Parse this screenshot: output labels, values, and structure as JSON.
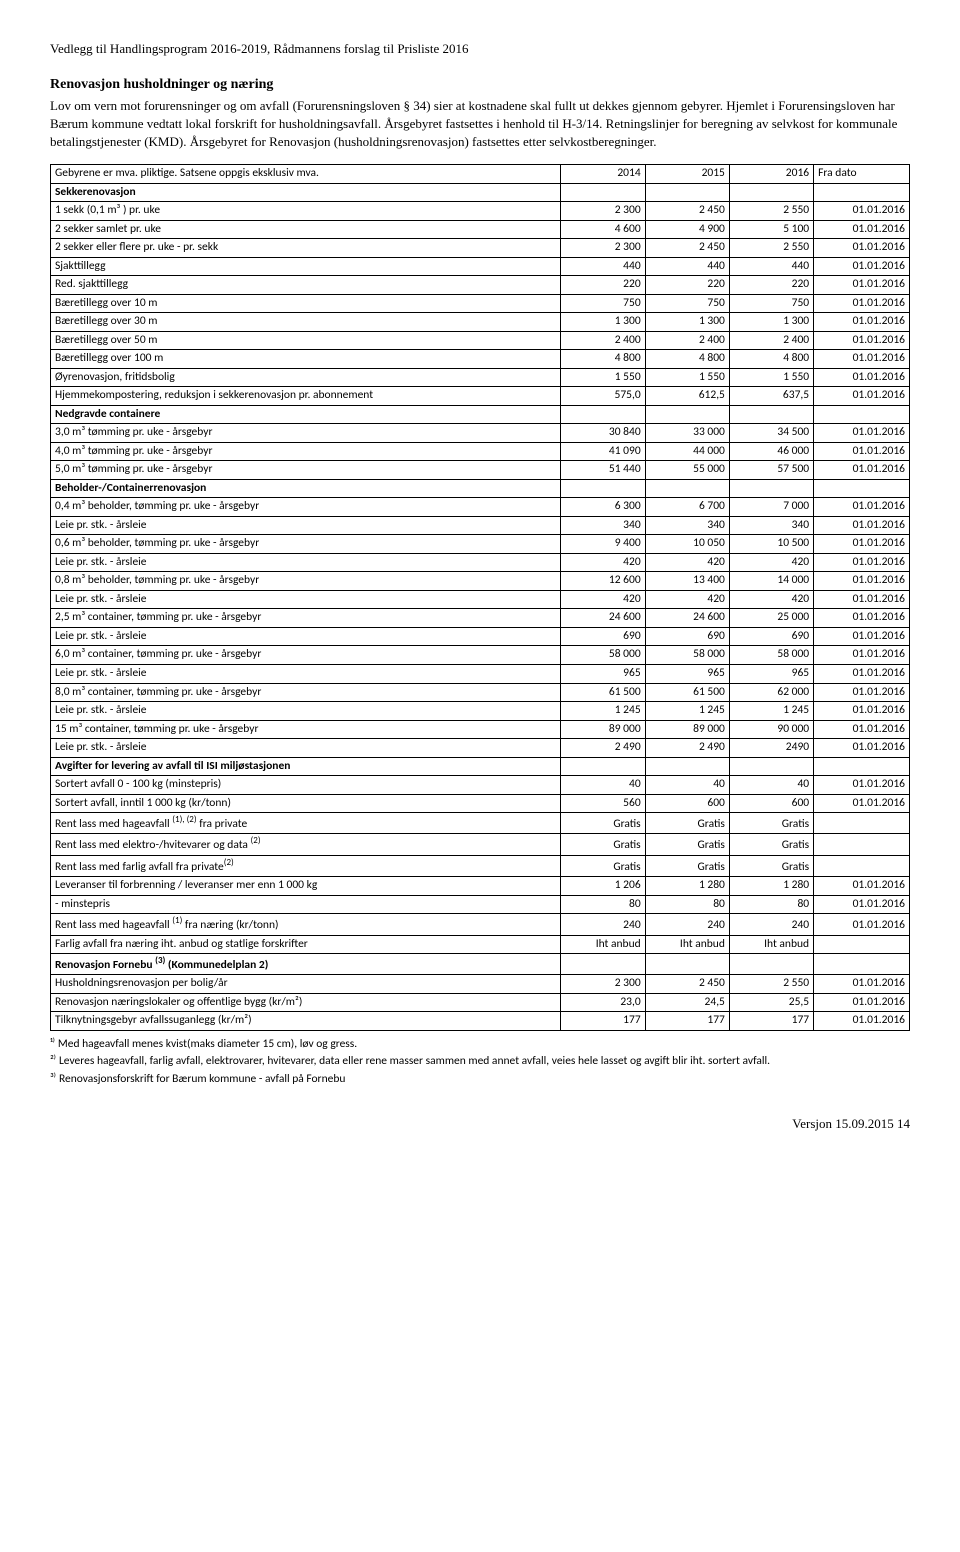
{
  "header_line": "Vedlegg til Handlingsprogram 2016-2019, Rådmannens forslag til Prisliste 2016",
  "section_title": "Renovasjon husholdninger og næring",
  "intro_para": "Lov om vern mot forurensninger og om avfall (Forurensningsloven § 34) sier at kostnadene skal fullt ut dekkes gjennom gebyrer. Hjemlet i Forurensingsloven har Bærum kommune vedtatt lokal forskrift for husholdningsavfall. Årsgebyret fastsettes i henhold til H-3/14. Retningslinjer for beregning av selvkost for kommunale betalingstjenester (KMD). Årsgebyret for Renovasjon (husholdningsrenovasjon) fastsettes etter selvkostberegninger.",
  "table_header": {
    "col0": "Gebyrene er mva. pliktige. Satsene oppgis eksklusiv mva.",
    "col1": "2014",
    "col2": "2015",
    "col3": "2016",
    "col4": "Fra  dato"
  },
  "rows": [
    {
      "label": "Sekkerenovasjon",
      "bold": true
    },
    {
      "label": "1 sekk (0,1 m³ ) pr. uke",
      "v": [
        "2 300",
        "2 450",
        "2 550",
        "01.01.2016"
      ]
    },
    {
      "label": "2 sekker samlet pr. uke",
      "v": [
        "4 600",
        "4 900",
        "5 100",
        "01.01.2016"
      ]
    },
    {
      "label": "2 sekker eller flere pr. uke - pr. sekk",
      "v": [
        "2 300",
        "2 450",
        "2 550",
        "01.01.2016"
      ]
    },
    {
      "label": "Sjakttillegg",
      "v": [
        "440",
        "440",
        "440",
        "01.01.2016"
      ]
    },
    {
      "label": "Red. sjakttillegg",
      "v": [
        "220",
        "220",
        "220",
        "01.01.2016"
      ]
    },
    {
      "label": "Bæretillegg over 10 m",
      "v": [
        "750",
        "750",
        "750",
        "01.01.2016"
      ]
    },
    {
      "label": "Bæretillegg over 30 m",
      "v": [
        "1 300",
        "1 300",
        "1 300",
        "01.01.2016"
      ]
    },
    {
      "label": "Bæretillegg over 50 m",
      "v": [
        "2 400",
        "2 400",
        "2 400",
        "01.01.2016"
      ]
    },
    {
      "label": "Bæretillegg over 100 m",
      "v": [
        "4 800",
        "4 800",
        "4 800",
        "01.01.2016"
      ]
    },
    {
      "label": "Øyrenovasjon, fritidsbolig",
      "v": [
        "1 550",
        "1 550",
        "1 550",
        "01.01.2016"
      ]
    },
    {
      "label": "Hjemmekompostering, reduksjon i sekkerenovasjon pr. abonnement",
      "v": [
        "575,0",
        "612,5",
        "637,5",
        "01.01.2016"
      ]
    },
    {
      "label": "Nedgravde containere",
      "bold": true
    },
    {
      "label": "3,0 m³ tømming pr. uke - årsgebyr",
      "v": [
        "30 840",
        "33 000",
        "34 500",
        "01.01.2016"
      ]
    },
    {
      "label": "4,0 m³ tømming pr. uke - årsgebyr",
      "v": [
        "41 090",
        "44 000",
        "46 000",
        "01.01.2016"
      ]
    },
    {
      "label": "5,0 m³ tømming pr. uke - årsgebyr",
      "v": [
        "51 440",
        "55 000",
        "57 500",
        "01.01.2016"
      ]
    },
    {
      "label": "Beholder-/Containerrenovasjon",
      "bold": true
    },
    {
      "label": "0,4 m³ beholder, tømming pr. uke - årsgebyr",
      "v": [
        "6 300",
        "6 700",
        "7 000",
        "01.01.2016"
      ]
    },
    {
      "label": "Leie pr. stk. - årsleie",
      "v": [
        "340",
        "340",
        "340",
        "01.01.2016"
      ]
    },
    {
      "label": "0,6 m³ beholder, tømming pr. uke - årsgebyr",
      "v": [
        "9 400",
        "10 050",
        "10 500",
        "01.01.2016"
      ]
    },
    {
      "label": "Leie pr. stk. - årsleie",
      "v": [
        "420",
        "420",
        "420",
        "01.01.2016"
      ]
    },
    {
      "label": "0,8 m³ beholder, tømming pr. uke - årsgebyr",
      "v": [
        "12 600",
        "13 400",
        "14 000",
        "01.01.2016"
      ]
    },
    {
      "label": "Leie pr. stk. - årsleie",
      "v": [
        "420",
        "420",
        "420",
        "01.01.2016"
      ]
    },
    {
      "label": "2,5 m³ container, tømming pr. uke - årsgebyr",
      "v": [
        "24 600",
        "24 600",
        "25 000",
        "01.01.2016"
      ]
    },
    {
      "label": "Leie pr. stk. - årsleie",
      "v": [
        "690",
        "690",
        "690",
        "01.01.2016"
      ]
    },
    {
      "label": "6,0 m³ container, tømming pr. uke - årsgebyr",
      "v": [
        "58 000",
        "58 000",
        "58 000",
        "01.01.2016"
      ]
    },
    {
      "label": "Leie pr. stk. - årsleie",
      "v": [
        "965",
        "965",
        "965",
        "01.01.2016"
      ]
    },
    {
      "label": "8,0 m³ container, tømming pr. uke - årsgebyr",
      "v": [
        "61 500",
        "61 500",
        "62 000",
        "01.01.2016"
      ]
    },
    {
      "label": "Leie pr. stk. - årsleie",
      "v": [
        "1 245",
        "1 245",
        "1 245",
        "01.01.2016"
      ]
    },
    {
      "label": "15 m³ container, tømming pr. uke - årsgebyr",
      "v": [
        "89 000",
        "89 000",
        "90 000",
        "01.01.2016"
      ]
    },
    {
      "label": "Leie pr. stk. - årsleie",
      "v": [
        "2 490",
        "2 490",
        "2490",
        "01.01.2016"
      ]
    },
    {
      "label": "Avgifter for levering av avfall til ISI miljøstasjonen",
      "bold": true
    },
    {
      "label": "Sortert avfall 0 - 100 kg (minstepris)",
      "v": [
        "40",
        "40",
        "40",
        "01.01.2016"
      ]
    },
    {
      "label": "Sortert avfall, inntil  1 000 kg (kr/tonn)",
      "v": [
        "560",
        "600",
        "600",
        "01.01.2016"
      ]
    },
    {
      "label_html": "Rent lass med hageavfall <span class='sup'>(1), (2)</span> fra private",
      "v": [
        "Gratis",
        "Gratis",
        "Gratis",
        ""
      ]
    },
    {
      "label_html": "Rent lass med elektro-/hvitevarer og data <span class='sup'>(2)</span>",
      "v": [
        "Gratis",
        "Gratis",
        "Gratis",
        ""
      ]
    },
    {
      "label_html": "Rent lass med farlig avfall fra private<span class='sup'>(2)</span>",
      "v": [
        "Gratis",
        "Gratis",
        "Gratis",
        ""
      ]
    },
    {
      "label": "Leveranser  til forbrenning / leveranser mer enn 1 000 kg",
      "v": [
        "1 206",
        "1 280",
        "1 280",
        "01.01.2016"
      ]
    },
    {
      "label": " - minstepris",
      "v": [
        "80",
        "80",
        "80",
        "01.01.2016"
      ]
    },
    {
      "label_html": "Rent lass med hageavfall <span class='sup'>(1)</span> fra næring  (kr/tonn)",
      "v": [
        "240",
        "240",
        "240",
        "01.01.2016"
      ]
    },
    {
      "label": "Farlig avfall fra næring iht. anbud og statlige forskrifter",
      "v": [
        "Iht anbud",
        "Iht anbud",
        "Iht anbud",
        ""
      ]
    },
    {
      "label_html": "Renovasjon Fornebu <span class='sup'>(3)</span> (Kommunedelplan 2)",
      "bold": true
    },
    {
      "label": "Husholdningsrenovasjon per bolig/år",
      "v": [
        "2 300",
        "2 450",
        "2 550",
        "01.01.2016"
      ]
    },
    {
      "label": "Renovasjon næringslokaler og offentlige bygg (kr/m²)",
      "v": [
        "23,0",
        "24,5",
        "25,5",
        "01.01.2016"
      ]
    },
    {
      "label": "Tilknytningsgebyr avfallssuganlegg  (kr/m²)",
      "v": [
        "177",
        "177",
        "177",
        "01.01.2016"
      ]
    }
  ],
  "footnotes": [
    "¹⁾ Med hageavfall menes kvist(maks diameter 15 cm), løv og gress.",
    "²⁾ Leveres hageavfall, farlig avfall, elektrovarer, hvitevarer, data eller rene masser sammen med annet avfall, veies hele lasset og avgift blir iht. sortert avfall.",
    "³⁾ Renovasjonsforskrift  for Bærum kommune - avfall på Fornebu"
  ],
  "footer": "Versjon 15.09.2015  14"
}
